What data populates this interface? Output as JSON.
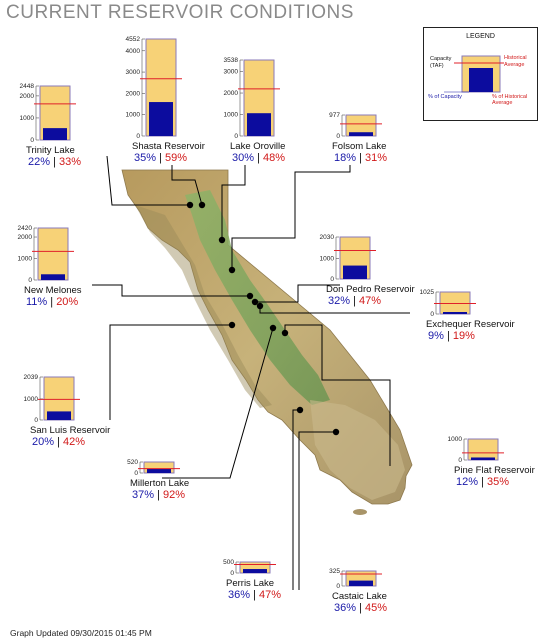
{
  "title": "CURRENT RESERVOIR CONDITIONS",
  "footer": "Graph Updated 09/30/2015 01:45 PM",
  "colors": {
    "capacity_fill": "#f7d277",
    "capacity_border": "#8a7ab8",
    "storage_fill": "#0c0c9e",
    "historical_line": "#e0202a",
    "pct_capacity_text": "#1a1aa8",
    "pct_historical_text": "#d11919",
    "title": "#8a8a8a",
    "map_land": "#b9a66a",
    "map_valley": "#7fa35e",
    "leader_line": "#000000"
  },
  "legend": {
    "title": "LEGEND",
    "capacity": "Capacity (TAF)",
    "historical": "Historical Average",
    "pct_capacity": "% of Capacity",
    "pct_historical": "% of Historical Average"
  },
  "reservoirs": [
    {
      "name": "Trinity Lake",
      "capacity_taf": 2448,
      "ticks": [
        "2448",
        "2000",
        "1000",
        "0"
      ],
      "pct_capacity": "22%",
      "pct_historical": "33%",
      "storage_fraction": 0.22,
      "historical_fraction": 0.67
    },
    {
      "name": "Shasta Reservoir",
      "capacity_taf": 4552,
      "ticks": [
        "4552",
        "4000",
        "3000",
        "2000",
        "1000",
        "0"
      ],
      "pct_capacity": "35%",
      "pct_historical": "59%",
      "storage_fraction": 0.35,
      "historical_fraction": 0.59
    },
    {
      "name": "Lake Oroville",
      "capacity_taf": 3538,
      "ticks": [
        "3538",
        "3000",
        "2000",
        "1000",
        "0"
      ],
      "pct_capacity": "30%",
      "pct_historical": "48%",
      "storage_fraction": 0.3,
      "historical_fraction": 0.62
    },
    {
      "name": "Folsom Lake",
      "capacity_taf": 977,
      "ticks": [
        "977",
        "0"
      ],
      "pct_capacity": "18%",
      "pct_historical": "31%",
      "storage_fraction": 0.18,
      "historical_fraction": 0.58
    },
    {
      "name": "New Melones",
      "capacity_taf": 2420,
      "ticks": [
        "2420",
        "2000",
        "1000",
        "0"
      ],
      "pct_capacity": "11%",
      "pct_historical": "20%",
      "storage_fraction": 0.11,
      "historical_fraction": 0.55
    },
    {
      "name": "Don Pedro Reservoir",
      "capacity_taf": 2030,
      "ticks": [
        "2030",
        "1000",
        "0"
      ],
      "pct_capacity": "32%",
      "pct_historical": "47%",
      "storage_fraction": 0.32,
      "historical_fraction": 0.68
    },
    {
      "name": "Exchequer Reservoir",
      "capacity_taf": 1025,
      "ticks": [
        "1025",
        "0"
      ],
      "pct_capacity": "9%",
      "pct_historical": "19%",
      "storage_fraction": 0.09,
      "historical_fraction": 0.48
    },
    {
      "name": "San Luis Reservoir",
      "capacity_taf": 2039,
      "ticks": [
        "2039",
        "1000",
        "0"
      ],
      "pct_capacity": "20%",
      "pct_historical": "42%",
      "storage_fraction": 0.2,
      "historical_fraction": 0.48
    },
    {
      "name": "Millerton Lake",
      "capacity_taf": 520,
      "ticks": [
        "520",
        "0"
      ],
      "pct_capacity": "37%",
      "pct_historical": "92%",
      "storage_fraction": 0.37,
      "historical_fraction": 0.4
    },
    {
      "name": "Pine Flat Reservoir",
      "capacity_taf": 1000,
      "ticks": [
        "1000",
        "0"
      ],
      "pct_capacity": "12%",
      "pct_historical": "35%",
      "storage_fraction": 0.12,
      "historical_fraction": 0.34
    },
    {
      "name": "Perris Lake",
      "capacity_taf": 500,
      "ticks": [
        "500",
        "0"
      ],
      "pct_capacity": "36%",
      "pct_historical": "47%",
      "storage_fraction": 0.36,
      "historical_fraction": 0.77
    },
    {
      "name": "Castaic Lake",
      "capacity_taf": 325,
      "ticks": [
        "325",
        "0"
      ],
      "pct_capacity": "36%",
      "pct_historical": "45%",
      "storage_fraction": 0.36,
      "historical_fraction": 0.8
    }
  ]
}
